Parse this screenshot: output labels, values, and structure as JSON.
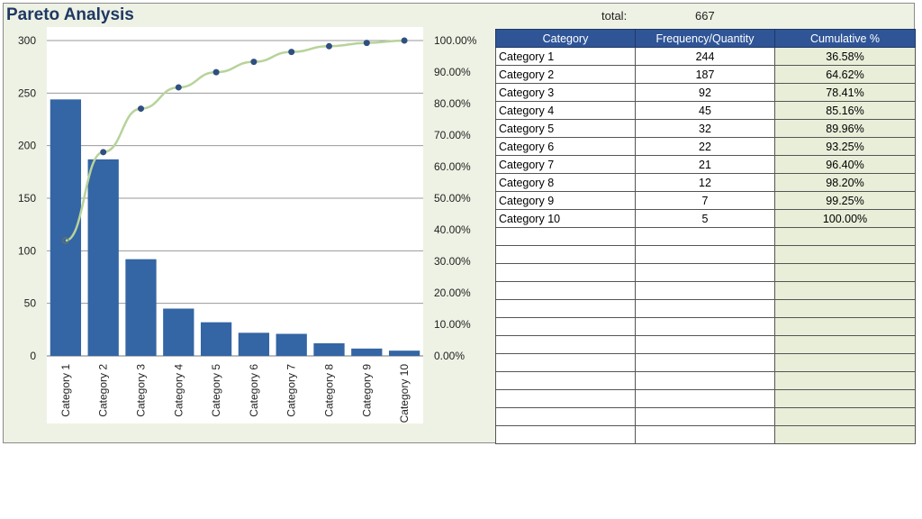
{
  "title": "Pareto Analysis",
  "total": {
    "label": "total:",
    "value": "667"
  },
  "colors": {
    "bar": "#3465a4",
    "line": "#b7d39a",
    "marker": "#2f4f80",
    "header": "#2f5597"
  },
  "table": {
    "headers": [
      "Category",
      "Frequency/Quantity",
      "Cumulative %"
    ],
    "rows": [
      {
        "category": "Category 1",
        "frequency": "244",
        "cumulative": "36.58%"
      },
      {
        "category": "Category 2",
        "frequency": "187",
        "cumulative": "64.62%"
      },
      {
        "category": "Category 3",
        "frequency": "92",
        "cumulative": "78.41%"
      },
      {
        "category": "Category 4",
        "frequency": "45",
        "cumulative": "85.16%"
      },
      {
        "category": "Category 5",
        "frequency": "32",
        "cumulative": "89.96%"
      },
      {
        "category": "Category 6",
        "frequency": "22",
        "cumulative": "93.25%"
      },
      {
        "category": "Category 7",
        "frequency": "21",
        "cumulative": "96.40%"
      },
      {
        "category": "Category 8",
        "frequency": "12",
        "cumulative": "98.20%"
      },
      {
        "category": "Category 9",
        "frequency": "7",
        "cumulative": "99.25%"
      },
      {
        "category": "Category 10",
        "frequency": "5",
        "cumulative": "100.00%"
      }
    ],
    "empty_rows": 12
  },
  "chart_data": {
    "type": "bar",
    "categories": [
      "Category 1",
      "Category 2",
      "Category 3",
      "Category 4",
      "Category 5",
      "Category 6",
      "Category 7",
      "Category 8",
      "Category 9",
      "Category 10"
    ],
    "series": [
      {
        "values": [
          244,
          187,
          92,
          45,
          32,
          22,
          21,
          12,
          7,
          5
        ]
      },
      {
        "type": "line",
        "axis": "secondary",
        "values": [
          36.58,
          64.62,
          78.41,
          85.16,
          89.96,
          93.25,
          96.4,
          98.2,
          99.25,
          100.0
        ]
      }
    ],
    "ylim": [
      0,
      300
    ],
    "yticks": [
      "0",
      "50",
      "100",
      "150",
      "200",
      "250",
      "300"
    ],
    "y2lim": [
      0,
      100
    ],
    "y2ticks": [
      "0.00%",
      "10.00%",
      "20.00%",
      "30.00%",
      "40.00%",
      "50.00%",
      "60.00%",
      "70.00%",
      "80.00%",
      "90.00%",
      "100.00%"
    ],
    "grid": true,
    "legend": "none"
  }
}
